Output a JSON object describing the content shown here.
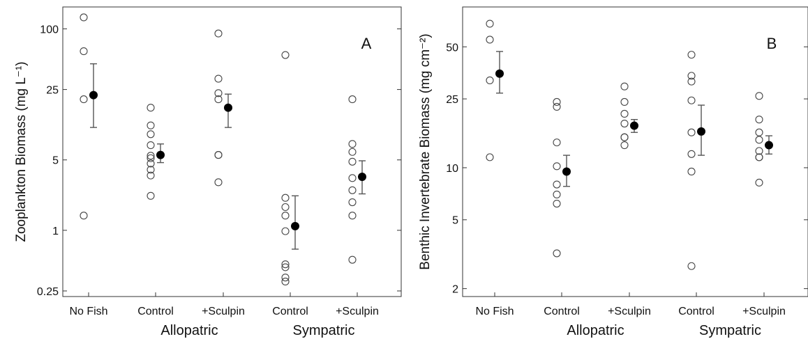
{
  "chart_data": [
    {
      "type": "scatter",
      "panel_label": "A",
      "ylabel": "Zooplankton Biomass (mg L⁻¹)",
      "yscale": "log",
      "ylim": [
        0.22,
        165
      ],
      "yticks": [
        0.25,
        1,
        5,
        25,
        100
      ],
      "ytick_labels": [
        "0.25",
        "1",
        "5",
        "25",
        "100"
      ],
      "categories": [
        "No Fish",
        "Control",
        "+Sculpin",
        "Control",
        "+Sculpin"
      ],
      "groups": [
        {
          "label": "Allopatric",
          "categories": [
            1,
            2
          ]
        },
        {
          "label": "Sympatric",
          "categories": [
            3,
            4
          ]
        }
      ],
      "points": [
        [
          130,
          60,
          20,
          1.4
        ],
        [
          16.5,
          11,
          9,
          7,
          5.5,
          5.2,
          4.6,
          4,
          3.5,
          2.2
        ],
        [
          90,
          32,
          23,
          20,
          5.6,
          5.6,
          3
        ],
        [
          55,
          2.1,
          1.7,
          1.4,
          0.98,
          0.46,
          0.43,
          0.34,
          0.31
        ],
        [
          20,
          7.2,
          6,
          4.8,
          3.3,
          2.5,
          1.9,
          1.4,
          0.51
        ]
      ],
      "means": [
        22,
        5.6,
        16.5,
        1.1,
        3.4
      ],
      "error_bars": [
        [
          45,
          10.5
        ],
        [
          7.2,
          4.7
        ],
        [
          22.5,
          10.5
        ],
        [
          2.2,
          0.65
        ],
        [
          4.9,
          2.3
        ]
      ]
    },
    {
      "type": "scatter",
      "panel_label": "B",
      "ylabel": "Benthic Invertebrate Biomass (mg cm⁻²)",
      "yscale": "log",
      "ylim": [
        1.8,
        85
      ],
      "yticks": [
        2,
        5,
        10,
        25,
        50
      ],
      "ytick_labels": [
        "2",
        "5",
        "10",
        "25",
        "50"
      ],
      "categories": [
        "No Fish",
        "Control",
        "+Sculpin",
        "Control",
        "+Sculpin"
      ],
      "groups": [
        {
          "label": "Allopatric",
          "categories": [
            1,
            2
          ]
        },
        {
          "label": "Sympatric",
          "categories": [
            3,
            4
          ]
        }
      ],
      "points": [
        [
          68,
          55,
          32,
          11.5
        ],
        [
          24,
          22.5,
          14,
          10.2,
          8,
          7,
          6.2,
          3.2
        ],
        [
          29.5,
          24,
          20.5,
          18,
          15,
          15,
          13.5
        ],
        [
          45,
          34,
          31.5,
          24.5,
          16,
          12,
          9.5,
          2.7
        ],
        [
          26,
          19,
          16,
          14.5,
          12.5,
          11.5,
          11.5,
          8.2
        ]
      ],
      "means": [
        35,
        9.5,
        17.5,
        16.2,
        13.5
      ],
      "error_bars": [
        [
          47,
          27
        ],
        [
          11.8,
          7.8
        ],
        [
          19,
          16
        ],
        [
          23,
          11.8
        ],
        [
          15.3,
          12
        ]
      ]
    }
  ]
}
